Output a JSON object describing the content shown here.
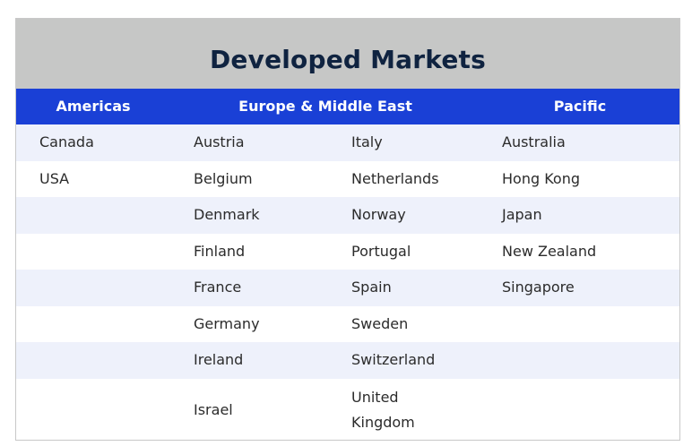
{
  "title": "Developed Markets",
  "columns": [
    "Americas",
    "Europe & Middle East",
    "Pacific"
  ],
  "rows": [
    {
      "americas": "Canada",
      "europe_a": "Austria",
      "europe_b": "Italy",
      "pacific": "Australia"
    },
    {
      "americas": "USA",
      "europe_a": "Belgium",
      "europe_b": "Netherlands",
      "pacific": "Hong Kong"
    },
    {
      "americas": "",
      "europe_a": "Denmark",
      "europe_b": "Norway",
      "pacific": "Japan"
    },
    {
      "americas": "",
      "europe_a": "Finland",
      "europe_b": "Portugal",
      "pacific": "New Zealand"
    },
    {
      "americas": "",
      "europe_a": "France",
      "europe_b": "Spain",
      "pacific": "Singapore"
    },
    {
      "americas": "",
      "europe_a": "Germany",
      "europe_b": "Sweden",
      "pacific": ""
    },
    {
      "americas": "",
      "europe_a": "Ireland",
      "europe_b": "Switzerland",
      "pacific": ""
    },
    {
      "americas": "",
      "europe_a": "Israel",
      "europe_b": "United Kingdom",
      "pacific": ""
    }
  ],
  "colors": {
    "title_bg": "#c6c7c6",
    "title_text": "#0f2340",
    "header_bg": "#1a40d6",
    "header_text": "#ffffff",
    "alt_row_bg": "#eef1fb"
  }
}
